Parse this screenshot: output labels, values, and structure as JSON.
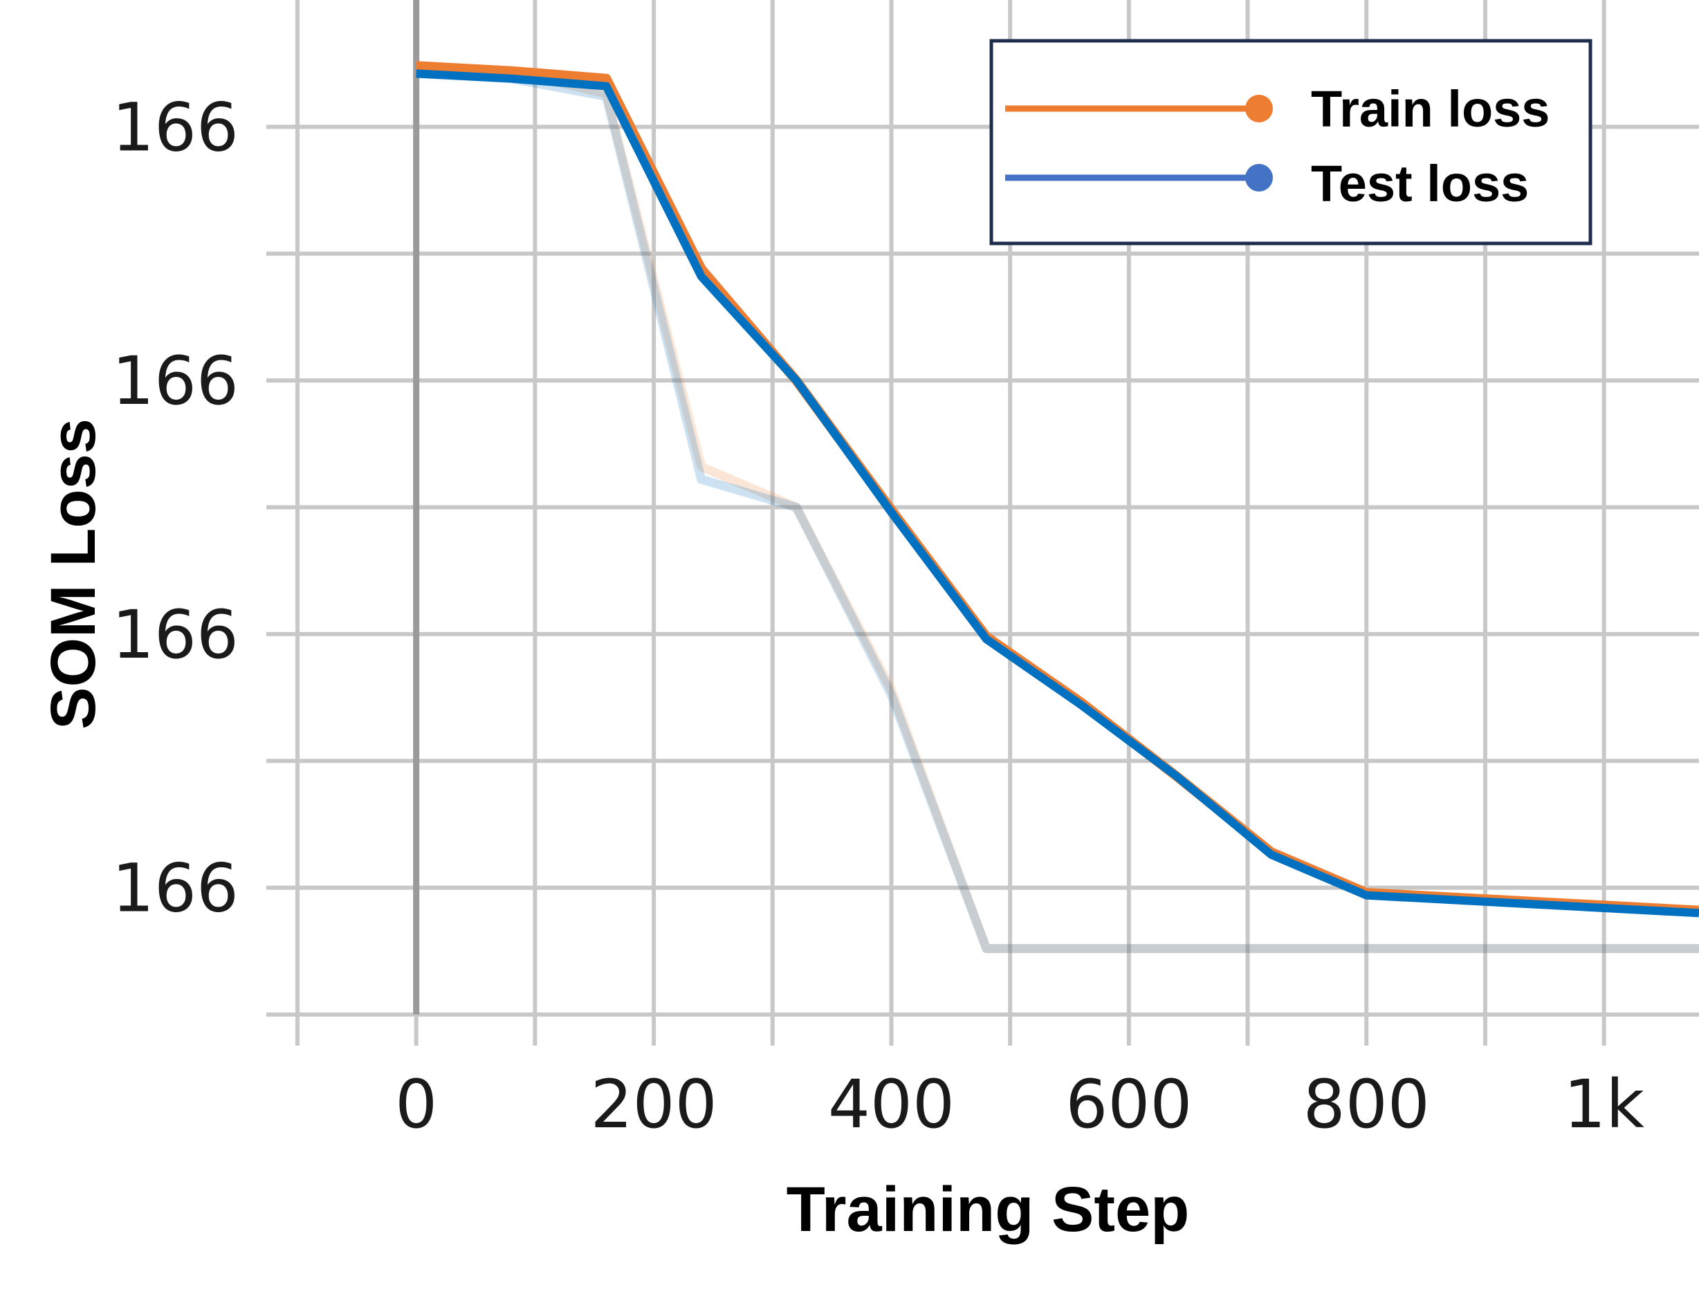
{
  "chart_data": {
    "type": "line",
    "xlabel": "Training Step",
    "ylabel": "SOM Loss",
    "x_ticks": [
      {
        "value": 0,
        "label": "0"
      },
      {
        "value": 200,
        "label": "200"
      },
      {
        "value": 400,
        "label": "400"
      },
      {
        "value": 600,
        "label": "600"
      },
      {
        "value": 800,
        "label": "800"
      },
      {
        "value": 1000,
        "label": "1k"
      }
    ],
    "x_minor_ticks": [
      -100,
      100,
      300,
      500,
      700,
      900
    ],
    "y_ticks": [
      {
        "value": 166.3,
        "label": "166"
      },
      {
        "value": 166.2,
        "label": "166"
      },
      {
        "value": 166.1,
        "label": "166"
      },
      {
        "value": 166.0,
        "label": "166"
      }
    ],
    "y_minor_ticks": [
      166.25,
      166.15,
      166.05,
      165.95
    ],
    "xlim": [
      -100,
      1080
    ],
    "ylim": [
      165.95,
      166.35
    ],
    "grid": true,
    "legend_position": "top-right",
    "series": [
      {
        "name": "Train loss",
        "color": "#ed7d31",
        "x": [
          0,
          80,
          160,
          240,
          320,
          400,
          480,
          560,
          640,
          720,
          800,
          1080
        ],
        "y": [
          166.324,
          166.322,
          166.319,
          166.244,
          166.2,
          166.149,
          166.099,
          166.073,
          166.044,
          166.014,
          165.998,
          165.991
        ]
      },
      {
        "name": "Test loss",
        "color": "#4472c4",
        "x": [
          0,
          80,
          160,
          240,
          320,
          400,
          480,
          560,
          640,
          720,
          800,
          1080
        ],
        "y": [
          166.321,
          166.319,
          166.316,
          166.241,
          166.2,
          166.148,
          166.098,
          166.072,
          166.044,
          166.013,
          165.997,
          165.99
        ]
      }
    ],
    "shadow_series": [
      {
        "color": "#ed7d31",
        "x": [
          0,
          80,
          160,
          240,
          320,
          400,
          480,
          1080
        ],
        "y": [
          166.324,
          166.322,
          166.313,
          166.166,
          166.15,
          166.078,
          165.976,
          165.976
        ]
      },
      {
        "color": "#0070c0",
        "x": [
          0,
          80,
          160,
          240,
          320,
          400,
          480,
          1080
        ],
        "y": [
          166.321,
          166.319,
          166.312,
          166.161,
          166.15,
          166.076,
          165.976,
          165.976
        ]
      }
    ],
    "main_line_color": "#0070c0"
  }
}
